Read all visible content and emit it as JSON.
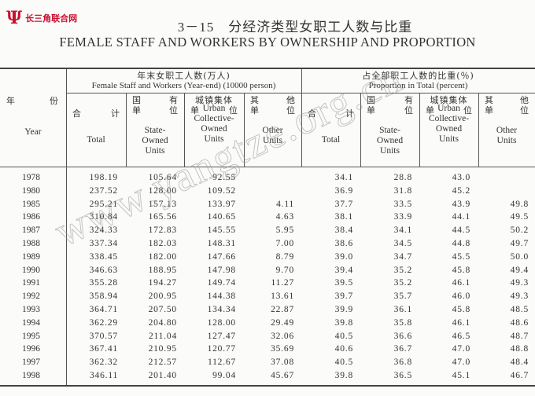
{
  "logo": {
    "mark": "Ψ",
    "text": "长三角联合网"
  },
  "title": {
    "cn": "3－15　分经济类型女职工人数与比重",
    "en": "FEMALE STAFF AND WORKERS BY OWNERSHIP AND PROPORTION"
  },
  "watermark": "www.yangtze.org.cn",
  "header": {
    "year_cn": [
      "年",
      "份"
    ],
    "year_en": "Year",
    "group1_cn": "年末女职工人数(万人)",
    "group1_en": "Female Staff and Workers (Year-end) (10000 person)",
    "group2_cn": "占全部职工人数的比重(％)",
    "group2_en": "Proportion in Total (percent)",
    "columns": [
      {
        "cn1": [
          "合",
          "计"
        ],
        "cn2": [],
        "en": "Total"
      },
      {
        "cn1": [
          "国",
          "有"
        ],
        "cn2": [
          "单",
          "位"
        ],
        "en": "State-\nOwned\nUnits"
      },
      {
        "cn1": [
          "城镇集体"
        ],
        "cn2": [
          "单",
          "位"
        ],
        "en": "Urban\nCollective-\nOwned\nUnits"
      },
      {
        "cn1": [
          "其",
          "他"
        ],
        "cn2": [
          "单",
          "位"
        ],
        "en": "Other\nUnits"
      }
    ]
  },
  "rows": [
    {
      "year": "1978",
      "total": "198.19",
      "state": "105.64",
      "urban": "92.55",
      "other": "",
      "p_total": "34.1",
      "p_state": "28.8",
      "p_urban": "43.0",
      "p_other": ""
    },
    {
      "year": "1980",
      "total": "237.52",
      "state": "128.00",
      "urban": "109.52",
      "other": "",
      "p_total": "36.9",
      "p_state": "31.8",
      "p_urban": "45.2",
      "p_other": ""
    },
    {
      "year": "1985",
      "total": "295.21",
      "state": "157.13",
      "urban": "133.97",
      "other": "4.11",
      "p_total": "37.7",
      "p_state": "33.5",
      "p_urban": "43.9",
      "p_other": "49.8"
    },
    {
      "year": "1986",
      "total": "310.84",
      "state": "165.56",
      "urban": "140.65",
      "other": "4.63",
      "p_total": "38.1",
      "p_state": "33.9",
      "p_urban": "44.1",
      "p_other": "49.5"
    },
    {
      "year": "1987",
      "total": "324.33",
      "state": "172.83",
      "urban": "145.55",
      "other": "5.95",
      "p_total": "38.4",
      "p_state": "34.1",
      "p_urban": "44.5",
      "p_other": "50.2"
    },
    {
      "year": "1988",
      "total": "337.34",
      "state": "182.03",
      "urban": "148.31",
      "other": "7.00",
      "p_total": "38.6",
      "p_state": "34.5",
      "p_urban": "44.8",
      "p_other": "49.7"
    },
    {
      "year": "1989",
      "total": "338.45",
      "state": "182.00",
      "urban": "147.66",
      "other": "8.79",
      "p_total": "39.0",
      "p_state": "34.7",
      "p_urban": "45.5",
      "p_other": "50.0"
    },
    {
      "year": "1990",
      "total": "346.63",
      "state": "188.95",
      "urban": "147.98",
      "other": "9.70",
      "p_total": "39.4",
      "p_state": "35.2",
      "p_urban": "45.8",
      "p_other": "49.4"
    },
    {
      "year": "1991",
      "total": "355.28",
      "state": "194.27",
      "urban": "149.74",
      "other": "11.27",
      "p_total": "39.5",
      "p_state": "35.2",
      "p_urban": "46.1",
      "p_other": "49.3"
    },
    {
      "year": "1992",
      "total": "358.94",
      "state": "200.95",
      "urban": "144.38",
      "other": "13.61",
      "p_total": "39.7",
      "p_state": "35.7",
      "p_urban": "46.0",
      "p_other": "49.3"
    },
    {
      "year": "1993",
      "total": "364.71",
      "state": "207.50",
      "urban": "134.34",
      "other": "22.87",
      "p_total": "39.9",
      "p_state": "36.1",
      "p_urban": "45.8",
      "p_other": "48.5"
    },
    {
      "year": "1994",
      "total": "362.29",
      "state": "204.80",
      "urban": "128.00",
      "other": "29.49",
      "p_total": "39.8",
      "p_state": "35.8",
      "p_urban": "46.1",
      "p_other": "48.6"
    },
    {
      "year": "1995",
      "total": "370.57",
      "state": "211.04",
      "urban": "127.47",
      "other": "32.06",
      "p_total": "40.5",
      "p_state": "36.6",
      "p_urban": "46.5",
      "p_other": "48.7"
    },
    {
      "year": "1996",
      "total": "367.41",
      "state": "210.95",
      "urban": "120.77",
      "other": "35.69",
      "p_total": "40.6",
      "p_state": "36.7",
      "p_urban": "47.0",
      "p_other": "48.8"
    },
    {
      "year": "1997",
      "total": "362.32",
      "state": "212.57",
      "urban": "112.67",
      "other": "37.08",
      "p_total": "40.5",
      "p_state": "36.8",
      "p_urban": "47.0",
      "p_other": "48.4"
    },
    {
      "year": "1998",
      "total": "346.11",
      "state": "201.40",
      "urban": "99.04",
      "other": "45.67",
      "p_total": "39.8",
      "p_state": "36.5",
      "p_urban": "45.1",
      "p_other": "46.7"
    }
  ]
}
